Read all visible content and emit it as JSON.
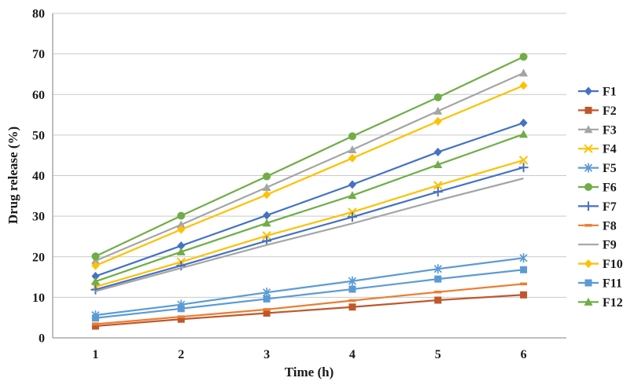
{
  "chart_data": {
    "type": "line",
    "title": "",
    "xlabel": "Time (h)",
    "ylabel": "Drug release (%)",
    "x": [
      1,
      2,
      3,
      4,
      5,
      6
    ],
    "ylim": [
      0,
      80
    ],
    "ytick_step": 10,
    "grid": true,
    "legend_position": "right",
    "colors": {
      "blue": "#4472C4",
      "dark_orange": "#C0572B",
      "gray": "#A5A5A5",
      "yellow": "#FFC000",
      "light_blue": "#5B9BD5",
      "green": "#70AD47",
      "orange": "#ED7D31",
      "gridline": "#C9C9C9",
      "axis": "#9B9B9B"
    },
    "series": [
      {
        "name": "F1",
        "color": "#4472C4",
        "marker": "diamond",
        "values": [
          15.2,
          22.7,
          30.2,
          37.8,
          45.8,
          53.0
        ]
      },
      {
        "name": "F2",
        "color": "#C0572B",
        "marker": "square",
        "values": [
          2.9,
          4.6,
          6.1,
          7.6,
          9.3,
          10.6
        ]
      },
      {
        "name": "F3",
        "color": "#A5A5A5",
        "marker": "triangle",
        "values": [
          19.0,
          27.9,
          37.1,
          46.4,
          55.9,
          65.3
        ]
      },
      {
        "name": "F4",
        "color": "#FFC000",
        "marker": "x",
        "values": [
          12.6,
          18.7,
          25.2,
          31.0,
          37.6,
          43.8
        ]
      },
      {
        "name": "F5",
        "color": "#5B9BD5",
        "marker": "asterisk",
        "values": [
          5.6,
          8.2,
          11.2,
          14.0,
          17.0,
          19.7
        ]
      },
      {
        "name": "F6",
        "color": "#70AD47",
        "marker": "circle",
        "values": [
          20.1,
          30.1,
          39.8,
          49.7,
          59.3,
          69.3
        ]
      },
      {
        "name": "F7",
        "color": "#4472C4",
        "marker": "plus",
        "values": [
          11.9,
          17.8,
          23.9,
          29.8,
          36.0,
          42.0
        ]
      },
      {
        "name": "F8",
        "color": "#ED7D31",
        "marker": "dash",
        "values": [
          3.4,
          5.2,
          7.0,
          9.2,
          11.3,
          13.3
        ]
      },
      {
        "name": "F9",
        "color": "#A5A5A5",
        "marker": "none",
        "values": [
          11.5,
          17.2,
          22.9,
          28.2,
          33.9,
          39.3
        ]
      },
      {
        "name": "F10",
        "color": "#FFC000",
        "marker": "diamond",
        "values": [
          17.8,
          26.7,
          35.3,
          44.3,
          53.4,
          62.2
        ]
      },
      {
        "name": "F11",
        "color": "#5B9BD5",
        "marker": "square",
        "values": [
          4.9,
          7.2,
          9.6,
          12.0,
          14.5,
          16.8
        ]
      },
      {
        "name": "F12",
        "color": "#70AD47",
        "marker": "triangle",
        "values": [
          13.9,
          21.2,
          28.3,
          35.1,
          42.7,
          50.2
        ]
      }
    ]
  }
}
